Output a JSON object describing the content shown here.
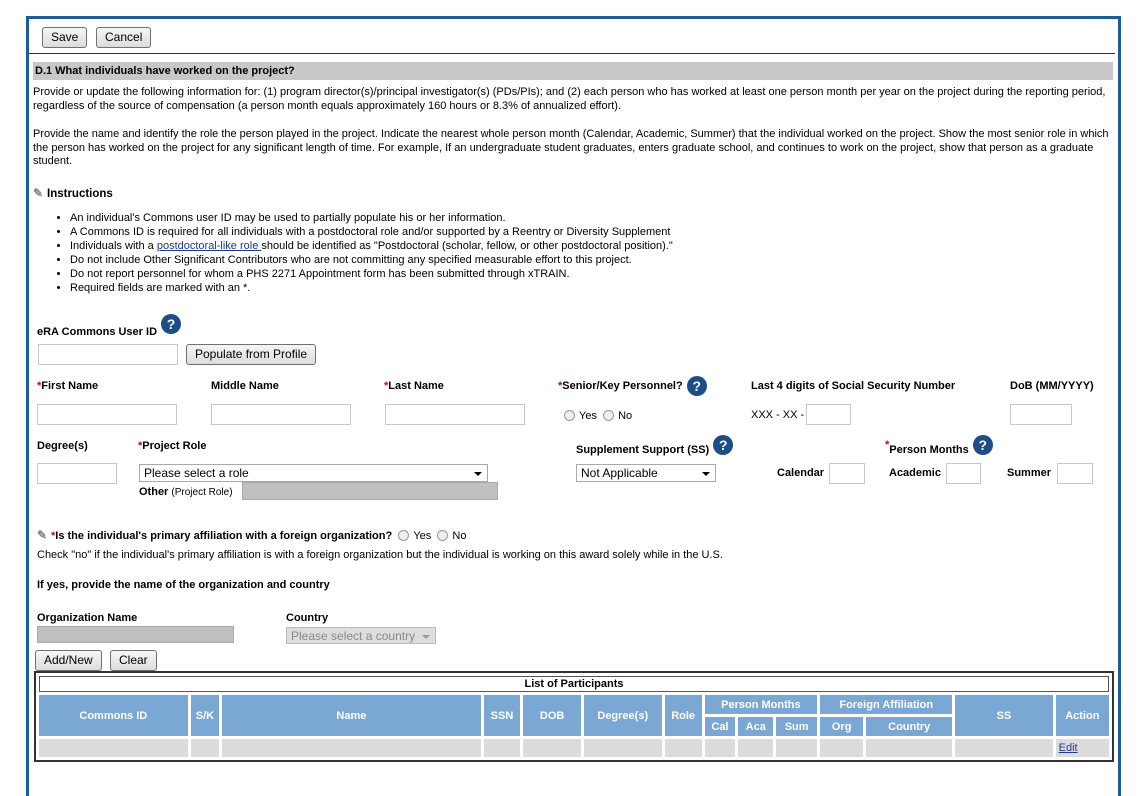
{
  "toolbar": {
    "save": "Save",
    "cancel": "Cancel"
  },
  "section": {
    "title": "D.1 What individuals have worked on the project?",
    "para1": "Provide or update the following information for: (1) program director(s)/principal investigator(s) (PDs/PIs); and (2) each person who has worked at least one person month per year on the project during the reporting period, regardless of the source of compensation (a person month equals approximately 160 hours or 8.3% of annualized effort).",
    "para2": "Provide the name and identify the role the person played in the project. Indicate the nearest whole person month (Calendar, Academic, Summer) that the individual worked on the project. Show the most senior role in which the person has worked on the project for any significant length of time. For example, If an undergraduate student graduates, enters graduate school, and continues to work on the project, show that person as a graduate student."
  },
  "instructions": {
    "title": "Instructions",
    "items": [
      "An individual's Commons user ID may be used to partially populate his or her information.",
      "A Commons ID is required for all individuals with a postdoctoral role and/or supported by a Reentry or Diversity Supplement",
      "Do not include Other Significant Contributors who are not committing any specified measurable effort to this project.",
      "Do not report personnel for whom a PHS 2271 Appointment form has been submitted through xTRAIN.",
      "Required fields are marked with an *."
    ],
    "postdoc_pre": "Individuals with a ",
    "postdoc_link": "postdoctoral-like role ",
    "postdoc_post": "should be identified as \"Postdoctoral (scholar, fellow, or other postdoctoral position).\""
  },
  "form": {
    "commons_id": "eRA Commons User ID",
    "populate": "Populate from Profile",
    "first": "First Name",
    "middle": "Middle Name",
    "last": "Last Name",
    "senior": "Senior/Key Personnel?",
    "yes": "Yes",
    "no": "No",
    "ssn": "Last 4 digits of Social Security Number",
    "ssn_prefix": "XXX - XX -",
    "dob": "DoB (MM/YYYY)",
    "degree": "Degree(s)",
    "role": "Project Role",
    "role_value": "Please select a role",
    "other": "Other",
    "other_note": "(Project Role)",
    "ss": "Supplement Support (SS)",
    "ss_value": "Not Applicable",
    "pm": "Person Months",
    "calendar": "Calendar",
    "academic": "Academic",
    "summer": "Summer",
    "required_mark": "*",
    "help": "?"
  },
  "foreign": {
    "question": "Is the individual's primary affiliation with a foreign organization?",
    "yes": "Yes",
    "no": "No",
    "note": "Check \"no\" if the individual's primary affiliation is with a foreign organization but the individual is working on this award solely while in the U.S.",
    "ifyes": "If yes, provide the name of the organization and country",
    "org": "Organization Name",
    "country": "Country",
    "country_value": "Please select a country",
    "add": "Add/New",
    "clear": "Clear"
  },
  "table": {
    "caption": "List of Participants",
    "headers": [
      "Commons ID",
      "S/K",
      "Name",
      "SSN",
      "DOB",
      "Degree(s)",
      "Role",
      "Person Months",
      "Foreign Affiliation",
      "SS",
      "Action"
    ],
    "sub": [
      "Cal",
      "Aca",
      "Sum",
      "Org",
      "Country"
    ],
    "edit": "Edit"
  }
}
